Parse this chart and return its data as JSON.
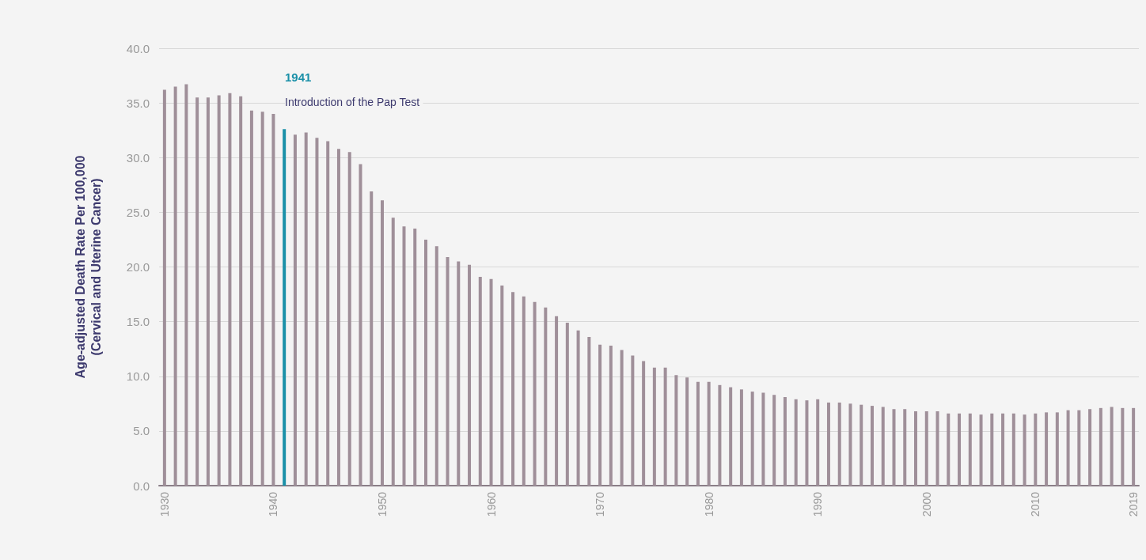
{
  "chart_data": {
    "type": "bar",
    "ylabel": "Age-adjusted Death Rate Per 100,000\n(Cervical and Uterine Cancer)",
    "x": [
      1930,
      1931,
      1932,
      1933,
      1934,
      1935,
      1936,
      1937,
      1938,
      1939,
      1940,
      1941,
      1942,
      1943,
      1944,
      1945,
      1946,
      1947,
      1948,
      1949,
      1950,
      1951,
      1952,
      1953,
      1954,
      1955,
      1956,
      1957,
      1958,
      1959,
      1960,
      1961,
      1962,
      1963,
      1964,
      1965,
      1966,
      1967,
      1968,
      1969,
      1970,
      1971,
      1972,
      1973,
      1974,
      1975,
      1976,
      1977,
      1978,
      1979,
      1980,
      1981,
      1982,
      1983,
      1984,
      1985,
      1986,
      1987,
      1988,
      1989,
      1990,
      1991,
      1992,
      1993,
      1994,
      1995,
      1996,
      1997,
      1998,
      1999,
      2000,
      2001,
      2002,
      2003,
      2004,
      2005,
      2006,
      2007,
      2008,
      2009,
      2010,
      2011,
      2012,
      2013,
      2014,
      2015,
      2016,
      2017,
      2018,
      2019
    ],
    "values": [
      36.2,
      36.5,
      36.7,
      35.5,
      35.5,
      35.7,
      35.9,
      35.6,
      34.3,
      34.2,
      34.0,
      32.6,
      32.1,
      32.3,
      31.8,
      31.5,
      30.8,
      30.5,
      29.4,
      26.9,
      26.1,
      24.5,
      23.7,
      23.5,
      22.5,
      21.9,
      20.9,
      20.5,
      20.2,
      19.1,
      18.9,
      18.3,
      17.7,
      17.3,
      16.8,
      16.3,
      15.5,
      14.9,
      14.2,
      13.6,
      12.9,
      12.8,
      12.4,
      11.9,
      11.4,
      10.8,
      10.8,
      10.1,
      9.9,
      9.5,
      9.5,
      9.2,
      9.0,
      8.8,
      8.6,
      8.5,
      8.3,
      8.1,
      7.9,
      7.8,
      7.9,
      7.6,
      7.6,
      7.5,
      7.4,
      7.3,
      7.2,
      7.0,
      7.0,
      6.8,
      6.8,
      6.8,
      6.6,
      6.6,
      6.6,
      6.5,
      6.6,
      6.6,
      6.6,
      6.5,
      6.6,
      6.7,
      6.7,
      6.9,
      6.9,
      7.0,
      7.1,
      7.2,
      7.1,
      7.1
    ],
    "colors": [
      "#9f8f99",
      "#9f8f99",
      "#9f8f99",
      "#9f8f99",
      "#9f8f99",
      "#9f8f99",
      "#9f8f99",
      "#9f8f99",
      "#9f8f99",
      "#9f8f99",
      "#9f8f99",
      "#1a90a8",
      "#9f8f99",
      "#9f8f99",
      "#9f8f99",
      "#9f8f99",
      "#9f8f99",
      "#9f8f99",
      "#9f8f99",
      "#9f8f99",
      "#9f8f99",
      "#9f8f99",
      "#9f8f99",
      "#9f8f99",
      "#9f8f99",
      "#9f8f99",
      "#9f8f99",
      "#9f8f99",
      "#9f8f99",
      "#9f8f99",
      "#9f8f99",
      "#9f8f99",
      "#9f8f99",
      "#9f8f99",
      "#9f8f99",
      "#9f8f99",
      "#9f8f99",
      "#9f8f99",
      "#9f8f99",
      "#9f8f99",
      "#9f8f99",
      "#9f8f99",
      "#9f8f99",
      "#9f8f99",
      "#9f8f99",
      "#9f8f99",
      "#9f8f99",
      "#9f8f99",
      "#9f8f99",
      "#9f8f99",
      "#9f8f99",
      "#9f8f99",
      "#9f8f99",
      "#9f8f99",
      "#9f8f99",
      "#9f8f99",
      "#9f8f99",
      "#9f8f99",
      "#9f8f99",
      "#9f8f99",
      "#9f8f99",
      "#9f8f99",
      "#9f8f99",
      "#9f8f99",
      "#9f8f99",
      "#9f8f99",
      "#9f8f99",
      "#9f8f99",
      "#9f8f99",
      "#9f8f99",
      "#9f8f99",
      "#9f8f99",
      "#9f8f99",
      "#9f8f99",
      "#9f8f99",
      "#9f8f99",
      "#9f8f99",
      "#9f8f99",
      "#9f8f99",
      "#9f8f99",
      "#9f8f99",
      "#9f8f99",
      "#9f8f99",
      "#9f8f99",
      "#9f8f99",
      "#9f8f99",
      "#9f8f99",
      "#9f8f99",
      "#9f8f99",
      "#9f8f99"
    ],
    "xlim": [
      1929.5,
      2019.5
    ],
    "xticks": [
      1930,
      1940,
      1950,
      1960,
      1970,
      1980,
      1990,
      2000,
      2010,
      2019
    ],
    "ylim": [
      0,
      40
    ],
    "yticks": [
      {
        "value": 0,
        "label": "0.0"
      },
      {
        "value": 5,
        "label": "5.0"
      },
      {
        "value": 10,
        "label": "10.0"
      },
      {
        "value": 15,
        "label": "15.0"
      },
      {
        "value": 20,
        "label": "20.0"
      },
      {
        "value": 25,
        "label": "25.0"
      },
      {
        "value": 30,
        "label": "30.0"
      },
      {
        "value": 35,
        "label": "35.0"
      },
      {
        "value": 40,
        "label": "40.0"
      }
    ],
    "grid": "y",
    "annotations": [
      "1941",
      "Introduction of the Pap Test"
    ]
  }
}
